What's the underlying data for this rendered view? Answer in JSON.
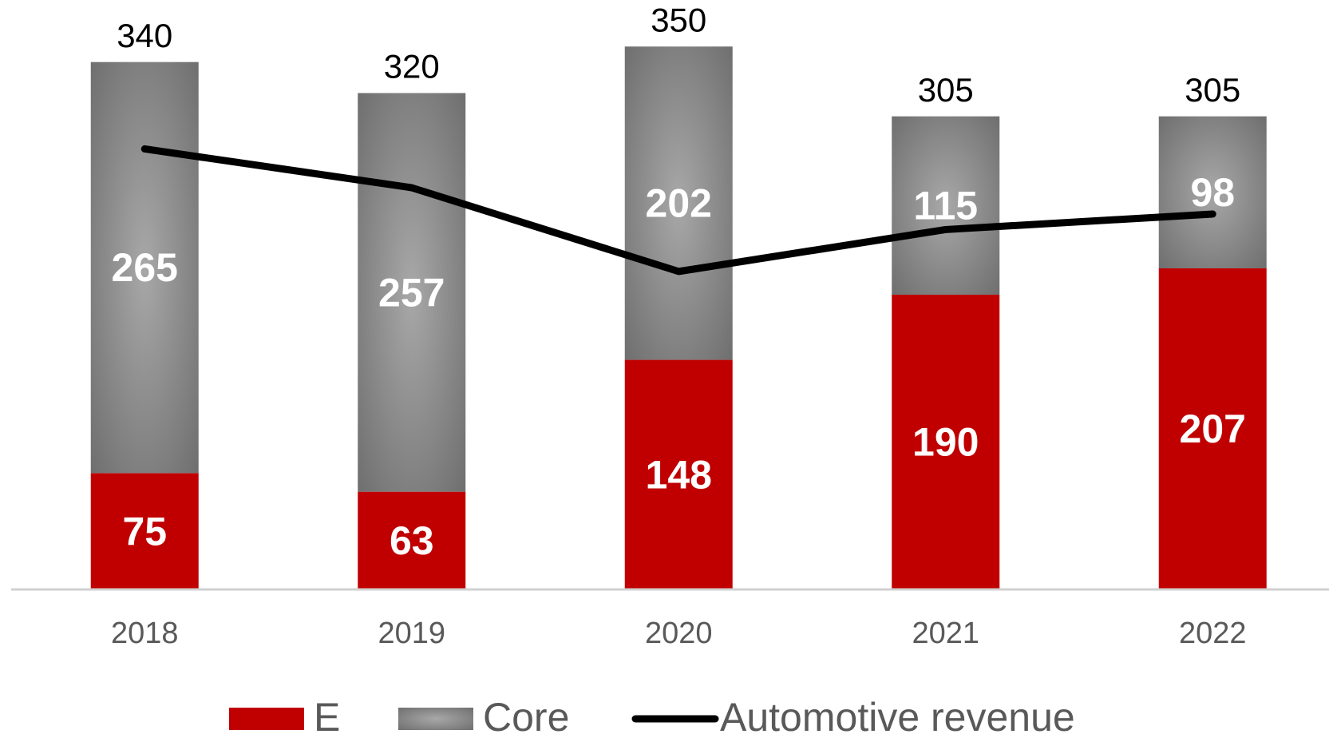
{
  "chart_data": {
    "type": "bar",
    "stacked": true,
    "categories": [
      "2018",
      "2019",
      "2020",
      "2021",
      "2022"
    ],
    "series": [
      {
        "name": "E",
        "color": "#c00000",
        "values": [
          75,
          63,
          148,
          190,
          207
        ]
      },
      {
        "name": "Core",
        "color": "#6f6f6f",
        "values": [
          265,
          257,
          202,
          115,
          98
        ]
      },
      {
        "name": "Automotive revenue",
        "type": "line",
        "color": "#000000",
        "values": [
          284,
          259,
          205,
          232,
          242
        ]
      }
    ],
    "totals": [
      340,
      320,
      350,
      305,
      305
    ],
    "ylim": [
      0,
      380
    ]
  }
}
